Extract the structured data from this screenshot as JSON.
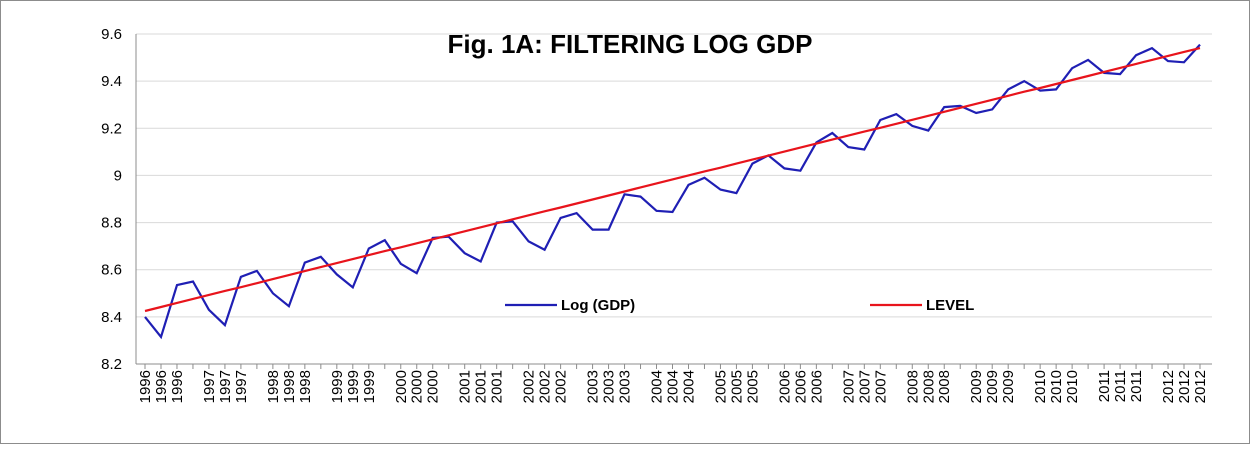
{
  "chart_data": {
    "type": "line",
    "title": "Fig. 1A: FILTERING LOG GDP",
    "categories": [
      "1996",
      "1996",
      "1996",
      null,
      "1997",
      "1997",
      "1997",
      null,
      "1998",
      "1998",
      "1998",
      null,
      "1999",
      "1999",
      "1999",
      null,
      "2000",
      "2000",
      "2000",
      null,
      "2001",
      "2001",
      "2001",
      null,
      "2002",
      "2002",
      "2002",
      null,
      "2003",
      "2003",
      "2003",
      null,
      "2004",
      "2004",
      "2004",
      null,
      "2005",
      "2005",
      "2005",
      null,
      "2006",
      "2006",
      "2006",
      null,
      "2007",
      "2007",
      "2007",
      null,
      "2008",
      "2008",
      "2008",
      null,
      "2009",
      "2009",
      "2009",
      null,
      "2010",
      "2010",
      "2010",
      null,
      "2011",
      "2011",
      "2011",
      null,
      "2012",
      "2012",
      "2012"
    ],
    "series": [
      {
        "name": "Log (GDP)",
        "color": "#1f1fb4",
        "values": [
          8.4,
          8.315,
          8.535,
          8.55,
          8.43,
          8.365,
          8.57,
          8.595,
          8.5,
          8.445,
          8.63,
          8.655,
          8.58,
          8.525,
          8.69,
          8.725,
          8.625,
          8.585,
          8.735,
          8.74,
          8.67,
          8.635,
          8.8,
          8.805,
          8.72,
          8.685,
          8.82,
          8.84,
          8.77,
          8.77,
          8.92,
          8.91,
          8.85,
          8.845,
          8.96,
          8.99,
          8.94,
          8.925,
          9.05,
          9.085,
          9.03,
          9.02,
          9.14,
          9.18,
          9.12,
          9.11,
          9.235,
          9.26,
          9.21,
          9.19,
          9.29,
          9.295,
          9.265,
          9.28,
          9.365,
          9.4,
          9.36,
          9.365,
          9.455,
          9.49,
          9.435,
          9.43,
          9.51,
          9.54,
          9.485,
          9.48,
          9.555
        ]
      },
      {
        "name": "LEVEL",
        "color": "#e8141c",
        "values": [
          8.425,
          8.442,
          8.459,
          8.476,
          8.493,
          8.51,
          8.526,
          8.543,
          8.56,
          8.577,
          8.594,
          8.611,
          8.628,
          8.645,
          8.662,
          8.679,
          8.695,
          8.712,
          8.729,
          8.746,
          8.763,
          8.78,
          8.797,
          8.814,
          8.831,
          8.848,
          8.864,
          8.881,
          8.898,
          8.915,
          8.932,
          8.949,
          8.966,
          8.983,
          9.0,
          9.017,
          9.033,
          9.05,
          9.067,
          9.084,
          9.101,
          9.118,
          9.135,
          9.152,
          9.169,
          9.186,
          9.202,
          9.219,
          9.236,
          9.253,
          9.27,
          9.287,
          9.304,
          9.321,
          9.338,
          9.355,
          9.371,
          9.388,
          9.405,
          9.422,
          9.439,
          9.456,
          9.473,
          9.49,
          9.507,
          9.524,
          9.54
        ]
      }
    ],
    "ylim": [
      8.2,
      9.6
    ],
    "yticks": [
      8.2,
      8.4,
      8.6,
      8.8,
      9,
      9.2,
      9.4,
      9.6
    ],
    "grid": true
  }
}
